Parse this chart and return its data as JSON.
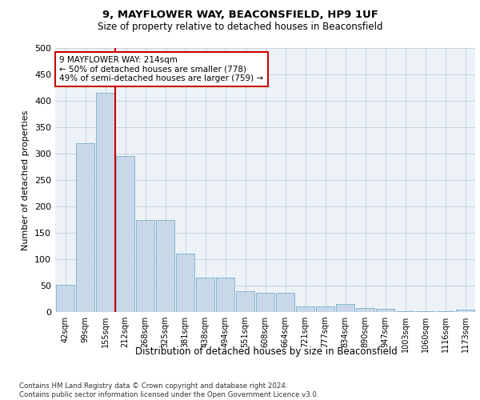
{
  "title": "9, MAYFLOWER WAY, BEACONSFIELD, HP9 1UF",
  "subtitle": "Size of property relative to detached houses in Beaconsfield",
  "xlabel": "Distribution of detached houses by size in Beaconsfield",
  "ylabel": "Number of detached properties",
  "categories": [
    "42sqm",
    "99sqm",
    "155sqm",
    "212sqm",
    "268sqm",
    "325sqm",
    "381sqm",
    "438sqm",
    "494sqm",
    "551sqm",
    "608sqm",
    "664sqm",
    "721sqm",
    "777sqm",
    "834sqm",
    "890sqm",
    "947sqm",
    "1003sqm",
    "1060sqm",
    "1116sqm",
    "1173sqm"
  ],
  "values": [
    52,
    320,
    415,
    295,
    175,
    175,
    110,
    65,
    65,
    40,
    37,
    37,
    10,
    10,
    15,
    8,
    6,
    2,
    1,
    1,
    5
  ],
  "bar_color": "#c8d8e8",
  "bar_edge_color": "#7ab0cc",
  "vline_color": "#cc0000",
  "annotation_text": "9 MAYFLOWER WAY: 214sqm\n← 50% of detached houses are smaller (778)\n49% of semi-detached houses are larger (759) →",
  "annotation_box_edge": "#cc0000",
  "footer": "Contains HM Land Registry data © Crown copyright and database right 2024.\nContains public sector information licensed under the Open Government Licence v3.0.",
  "background_color": "#edf2f7",
  "ylim": [
    0,
    500
  ],
  "yticks": [
    0,
    50,
    100,
    150,
    200,
    250,
    300,
    350,
    400,
    450,
    500
  ]
}
